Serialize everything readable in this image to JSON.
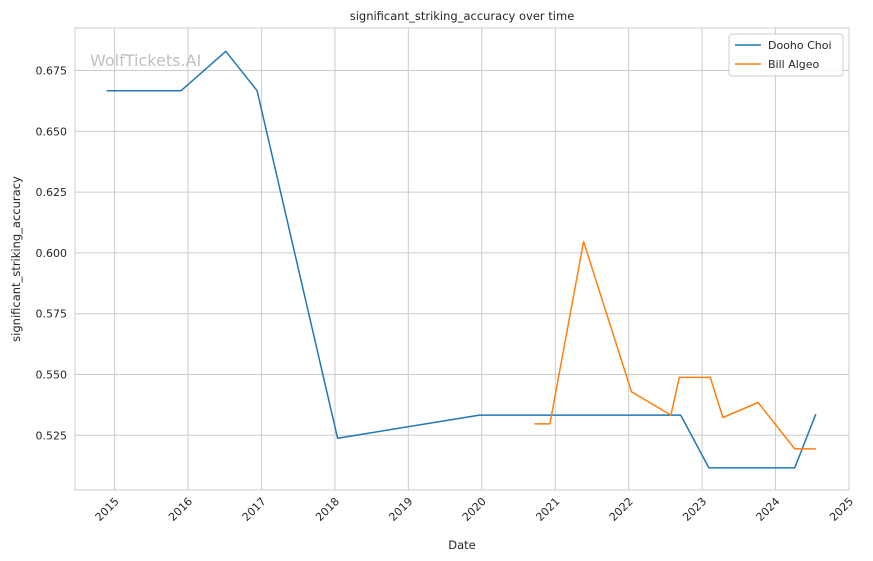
{
  "watermark": "WolfTickets.AI",
  "chart_data": {
    "type": "line",
    "title": "significant_striking_accuracy over time",
    "xlabel": "Date",
    "ylabel": "significant_striking_accuracy",
    "x_axis_type": "date",
    "xlim": [
      "2014-06-18",
      "2025-01-01"
    ],
    "ylim": [
      0.5025,
      0.6925
    ],
    "x_ticks": [
      "2015",
      "2016",
      "2017",
      "2018",
      "2019",
      "2020",
      "2021",
      "2022",
      "2023",
      "2024",
      "2025"
    ],
    "y_ticks": [
      0.525,
      0.55,
      0.575,
      0.6,
      0.625,
      0.65,
      0.675
    ],
    "y_tick_labels": [
      "0.525",
      "0.550",
      "0.575",
      "0.600",
      "0.625",
      "0.650",
      "0.675"
    ],
    "grid": true,
    "legend_position": "top-right",
    "series": [
      {
        "name": "Dooho Choi",
        "color": "#1f77b4",
        "points": [
          {
            "x": "2014-11-22",
            "y": 0.6667
          },
          {
            "x": "2015-11-28",
            "y": 0.6667
          },
          {
            "x": "2016-07-07",
            "y": 0.6829
          },
          {
            "x": "2016-12-10",
            "y": 0.6667
          },
          {
            "x": "2018-01-14",
            "y": 0.5238
          },
          {
            "x": "2019-12-21",
            "y": 0.5333
          },
          {
            "x": "2022-09-17",
            "y": 0.5333
          },
          {
            "x": "2023-02-04",
            "y": 0.5116
          },
          {
            "x": "2024-04-06",
            "y": 0.5116
          },
          {
            "x": "2024-07-20",
            "y": 0.5337
          }
        ]
      },
      {
        "name": "Bill Algeo",
        "color": "#ff7f0e",
        "points": [
          {
            "x": "2020-09-19",
            "y": 0.5297
          },
          {
            "x": "2020-12-05",
            "y": 0.5297
          },
          {
            "x": "2021-05-22",
            "y": 0.6047
          },
          {
            "x": "2022-01-15",
            "y": 0.5429
          },
          {
            "x": "2022-07-30",
            "y": 0.5333
          },
          {
            "x": "2022-09-10",
            "y": 0.5488
          },
          {
            "x": "2023-02-11",
            "y": 0.5488
          },
          {
            "x": "2023-04-15",
            "y": 0.5323
          },
          {
            "x": "2023-10-07",
            "y": 0.5385
          },
          {
            "x": "2024-04-06",
            "y": 0.5194
          },
          {
            "x": "2024-07-20",
            "y": 0.5194
          }
        ]
      }
    ]
  }
}
